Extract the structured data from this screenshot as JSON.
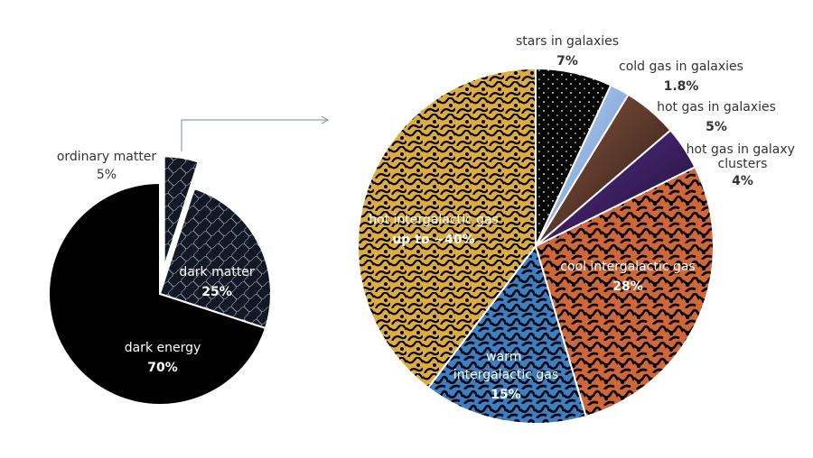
{
  "chart_data": [
    {
      "type": "pie",
      "slices": [
        {
          "label": "dark energy",
          "value": 70,
          "value_label": "70%",
          "color": "#000000"
        },
        {
          "label": "dark matter",
          "value": 25,
          "value_label": "25%",
          "color": "#1b2230"
        },
        {
          "label": "ordinary matter",
          "value": 5,
          "value_label": "5%",
          "color": "#2a3340",
          "exploded": true
        }
      ]
    },
    {
      "type": "pie",
      "slices": [
        {
          "label": "stars in galaxies",
          "value": 7,
          "value_label": "7%",
          "color": "#050505"
        },
        {
          "label": "cold gas in galaxies",
          "value": 1.8,
          "value_label": "1.8%",
          "color": "#8fb3e0"
        },
        {
          "label": "hot gas in galaxies",
          "value": 5,
          "value_label": "5%",
          "color": "#5a3326"
        },
        {
          "label": "hot gas in galaxy clusters",
          "value": 4,
          "value_label": "4%",
          "color": "#3a1f5c"
        },
        {
          "label": "cool intergalactic gas",
          "value": 28,
          "value_label": "28%",
          "color": "#d4683a"
        },
        {
          "label": "warm intergalactic gas",
          "value": 15,
          "value_label": "15%",
          "color": "#3b7fc4"
        },
        {
          "label": "hot intergalactic gas",
          "value": 40,
          "value_label": "up to ~40%",
          "color": "#e0b145"
        }
      ]
    }
  ]
}
